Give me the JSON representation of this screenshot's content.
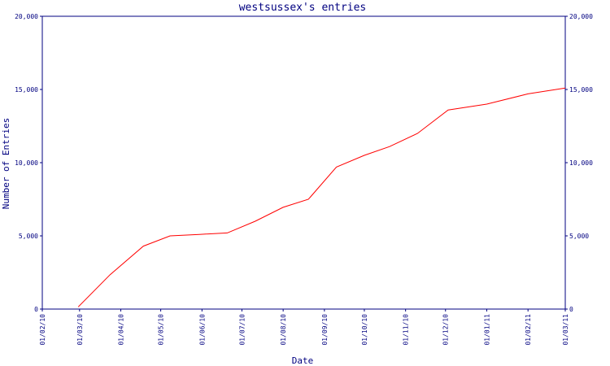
{
  "chart_data": {
    "type": "line",
    "title": "westsussex's entries",
    "xlabel": "Date",
    "ylabel": "Number of Entries",
    "x_ticks": [
      "01/02/10",
      "01/03/10",
      "01/04/10",
      "01/05/10",
      "01/06/10",
      "01/07/10",
      "01/08/10",
      "01/09/10",
      "01/10/10",
      "01/11/10",
      "01/12/10",
      "01/01/11",
      "01/02/11",
      "01/03/11"
    ],
    "y_ticks": [
      "0",
      "5,000",
      "10,000",
      "15,000",
      "20,000"
    ],
    "xlim": [
      "2010-02-01",
      "2011-03-01"
    ],
    "ylim": [
      0,
      20000
    ],
    "grid": false,
    "legend": "none",
    "colors": {
      "axis": "#000080",
      "series": "#ff0000"
    },
    "series": [
      {
        "x": [
          "2010-02-28",
          "2010-03-24",
          "2010-04-18",
          "2010-05-08",
          "2010-05-30",
          "2010-06-20",
          "2010-07-11",
          "2010-08-01",
          "2010-08-20",
          "2010-09-10",
          "2010-10-01",
          "2010-10-20",
          "2010-11-10",
          "2010-12-03",
          "2011-01-01",
          "2011-02-01",
          "2011-03-01"
        ],
        "values": [
          150,
          2350,
          4300,
          5000,
          5100,
          5200,
          6000,
          6950,
          7500,
          9700,
          10500,
          11100,
          12000,
          13600,
          14000,
          14700,
          15100
        ]
      }
    ]
  }
}
